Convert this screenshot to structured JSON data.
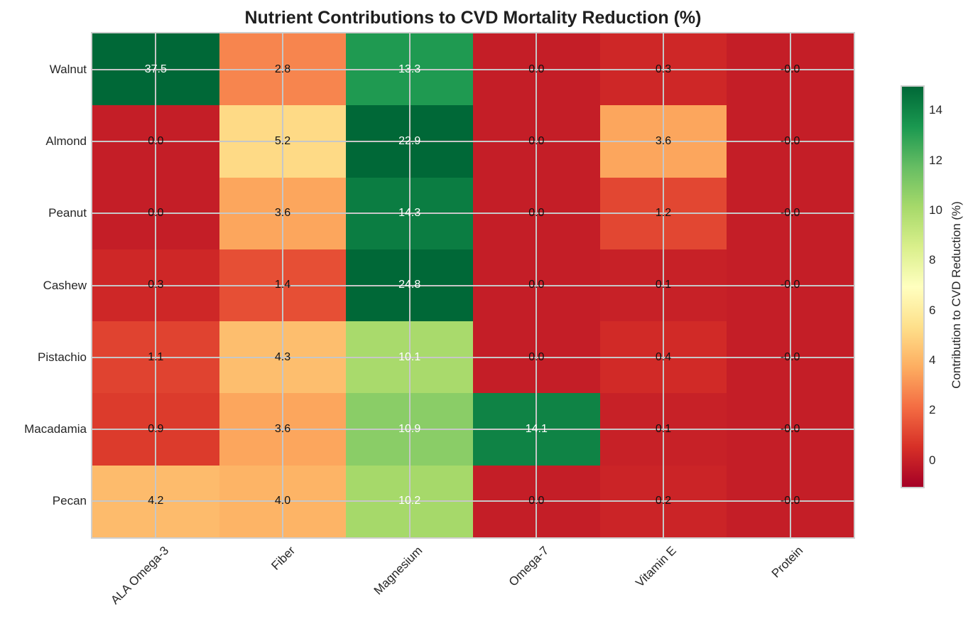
{
  "title": "Nutrient Contributions to CVD Mortality Reduction (%)",
  "chart_data": {
    "type": "heatmap",
    "rows": [
      "Walnut",
      "Almond",
      "Peanut",
      "Cashew",
      "Pistachio",
      "Macadamia",
      "Pecan"
    ],
    "columns": [
      "ALA Omega-3",
      "Fiber",
      "Magnesium",
      "Omega-7",
      "Vitamin E",
      "Protein"
    ],
    "values": [
      [
        37.5,
        2.8,
        13.3,
        0.0,
        0.3,
        -0.0
      ],
      [
        0.0,
        5.2,
        22.9,
        0.0,
        3.6,
        -0.0
      ],
      [
        0.0,
        3.6,
        14.3,
        0.0,
        1.2,
        -0.0
      ],
      [
        0.3,
        1.4,
        24.8,
        0.0,
        0.1,
        -0.0
      ],
      [
        1.1,
        4.3,
        10.1,
        0.0,
        0.4,
        -0.0
      ],
      [
        0.9,
        3.6,
        10.9,
        14.1,
        0.1,
        -0.0
      ],
      [
        4.2,
        4.0,
        10.2,
        0.0,
        0.2,
        -0.0
      ]
    ],
    "cell_labels": [
      [
        "37.5",
        "2.8",
        "13.3",
        "0.0",
        "0.3",
        "-0.0"
      ],
      [
        "0.0",
        "5.2",
        "22.9",
        "0.0",
        "3.6",
        "-0.0"
      ],
      [
        "0.0",
        "3.6",
        "14.3",
        "0.0",
        "1.2",
        "-0.0"
      ],
      [
        "0.3",
        "1.4",
        "24.8",
        "0.0",
        "0.1",
        "-0.0"
      ],
      [
        "1.1",
        "4.3",
        "10.1",
        "0.0",
        "0.4",
        "-0.0"
      ],
      [
        "0.9",
        "3.6",
        "10.9",
        "14.1",
        "0.1",
        "-0.0"
      ],
      [
        "4.2",
        "4.0",
        "10.2",
        "0.0",
        "0.2",
        "-0.0"
      ]
    ],
    "title": "Nutrient Contributions to CVD Mortality Reduction (%)",
    "xlabel": "",
    "ylabel": "",
    "grid": true,
    "legend_position": "right-colorbar",
    "colorbar": {
      "label": "Contribution to CVD Reduction (%)",
      "ticks": [
        0,
        2,
        4,
        6,
        8,
        10,
        12,
        14
      ],
      "vmin": -1,
      "vmax": 15,
      "colormap": "RdYlGn",
      "stops": [
        "#a50026",
        "#d73027",
        "#f46d43",
        "#fdae61",
        "#fee08b",
        "#ffffbf",
        "#d9ef8b",
        "#a6d96a",
        "#66bd63",
        "#1a9850",
        "#006837"
      ]
    }
  },
  "style": {
    "grid_color": "#c7c7c7",
    "text_dark": "#262626",
    "annot_black": "#111111",
    "annot_white": "#ffffff",
    "background": "#ffffff"
  }
}
